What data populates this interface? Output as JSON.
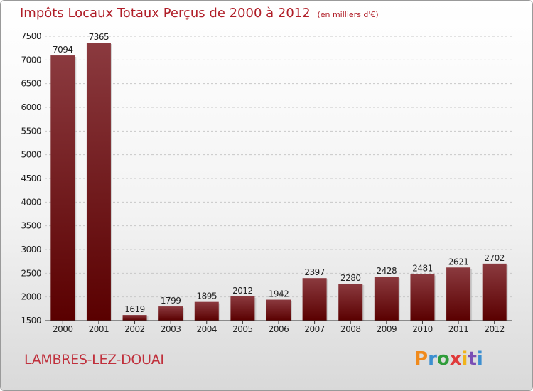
{
  "header": {
    "title": "Impôts Locaux Totaux Perçus de 2000 à 2012",
    "unit": "(en milliers d'€)"
  },
  "footer": {
    "commune": "LAMBRES-LEZ-DOUAI",
    "logo": [
      "P",
      "r",
      "o",
      "x",
      "i",
      "t",
      "i"
    ],
    "logo_colors": [
      "#f08a1c",
      "#3c8fd0",
      "#2f9c3a",
      "#e03a3a",
      "#f0b31c",
      "#7a4fb5",
      "#3c8fd0"
    ]
  },
  "colors": {
    "bar_top": "#8b3a3f",
    "bar_bottom": "#5a0000",
    "grid": "#c8c8c8",
    "axis_text": "#222222"
  },
  "chart_data": {
    "type": "bar",
    "title": "Impôts Locaux Totaux Perçus de 2000 à 2012",
    "xlabel": "",
    "ylabel": "",
    "categories": [
      "2000",
      "2001",
      "2002",
      "2003",
      "2004",
      "2005",
      "2006",
      "2007",
      "2008",
      "2009",
      "2010",
      "2011",
      "2012"
    ],
    "values": [
      7094,
      7365,
      1619,
      1799,
      1895,
      2012,
      1942,
      2397,
      2280,
      2428,
      2481,
      2621,
      2702
    ],
    "ylim": [
      1500,
      7500
    ],
    "yticks": [
      1500,
      2000,
      2500,
      3000,
      3500,
      4000,
      4500,
      5000,
      5500,
      6000,
      6500,
      7000,
      7500
    ],
    "grid": true
  }
}
